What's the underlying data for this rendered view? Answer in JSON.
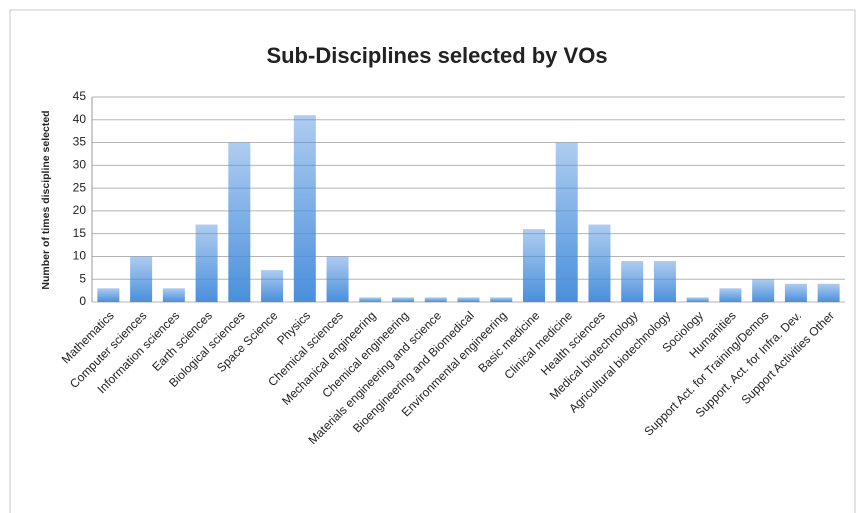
{
  "chart_data": {
    "type": "bar",
    "title": "Sub-Disciplines selected by VOs",
    "y_label": "Number of times discipline selected",
    "categories": [
      "Mathematics",
      "Computer sciences",
      "Information sciences",
      "Earth sciences",
      "Biological sciences",
      "Space Science",
      "Physics",
      "Chemical sciences",
      "Mechanical engineering",
      "Chemical engineering",
      "Materials engineering and science",
      "Bioengineering and Biomedical",
      "Environmental engineering",
      "Basic medicine",
      "Clinical medicine",
      "Health sciences",
      "Medical biotechnology",
      "Agricultural biotechnology",
      "Sociology",
      "Humanities",
      "Support Act. for Training/Demos",
      "Support. Act. for Infra. Dev.",
      "Support Activities Other"
    ],
    "values": [
      3,
      10,
      3,
      17,
      35,
      7,
      41,
      10,
      1,
      1,
      1,
      1,
      1,
      16,
      35,
      17,
      9,
      9,
      1,
      3,
      5,
      4,
      4
    ],
    "color": "#4a8fdc",
    "ylim": [
      0,
      45
    ],
    "yticks": [
      0,
      5,
      10,
      15,
      20,
      25,
      30,
      35,
      40,
      45
    ],
    "grid": true
  }
}
